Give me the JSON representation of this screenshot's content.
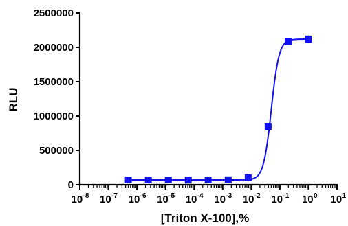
{
  "chart_data": {
    "type": "scatter",
    "xlabel": "[Triton X-100],%",
    "ylabel": "RLU",
    "x_scale": "log",
    "xlim": [
      1e-08,
      10
    ],
    "ylim": [
      0,
      2500000
    ],
    "x_ticks": [
      {
        "base": "10",
        "exp": "-8"
      },
      {
        "base": "10",
        "exp": "-7"
      },
      {
        "base": "10",
        "exp": "-6"
      },
      {
        "base": "10",
        "exp": "-5"
      },
      {
        "base": "10",
        "exp": "-4"
      },
      {
        "base": "10",
        "exp": "-3"
      },
      {
        "base": "10",
        "exp": "-2"
      },
      {
        "base": "10",
        "exp": "-1"
      },
      {
        "base": "10",
        "exp": "0"
      },
      {
        "base": "10",
        "exp": "1"
      }
    ],
    "y_ticks": [
      {
        "value": 0,
        "label": "0"
      },
      {
        "value": 500000,
        "label": "500000"
      },
      {
        "value": 1000000,
        "label": "1000000"
      },
      {
        "value": 1500000,
        "label": "1500000"
      },
      {
        "value": 2000000,
        "label": "2000000"
      },
      {
        "value": 2500000,
        "label": "2500000"
      }
    ],
    "grid": false,
    "legend": "none",
    "series": [
      {
        "color": "#1010f0",
        "marker": "square",
        "x": [
          5e-07,
          2.5e-06,
          1.25e-05,
          6.25e-05,
          0.00031,
          0.00156,
          0.0078,
          0.039,
          0.195,
          1.0
        ],
        "y": [
          70000,
          70000,
          70000,
          68000,
          70000,
          72000,
          100000,
          850000,
          2080000,
          2120000
        ],
        "err": [
          8000,
          8000,
          8000,
          8000,
          8000,
          8000,
          10000,
          25000,
          20000,
          45000
        ]
      }
    ],
    "fit": {
      "type": "sigmoidal",
      "bottom": 70000,
      "top": 2120000,
      "log_ec50": -1.3,
      "hill_slope": 3.2
    }
  }
}
